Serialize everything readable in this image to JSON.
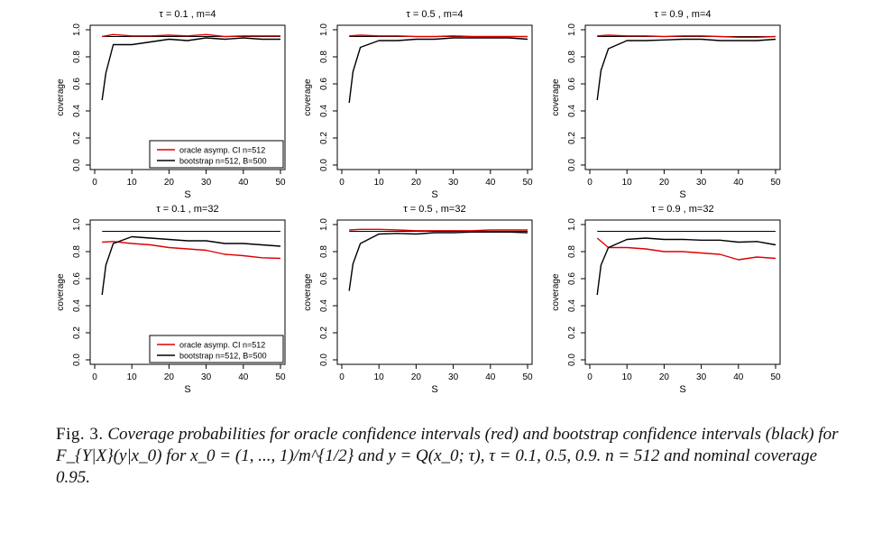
{
  "caption": {
    "label": "Fig. 3.",
    "text": "Coverage probabilities for oracle confidence intervals (red) and bootstrap confidence intervals (black) for F_{Y|X}(y|x_0) for x_0 = (1, ..., 1)/m^{1/2} and y = Q(x_0; τ), τ = 0.1, 0.5, 0.9. n = 512 and nominal coverage 0.95."
  },
  "colors": {
    "oracle": "#e00000",
    "bootstrap": "#000000",
    "nominal": "#000000"
  },
  "chart_data": [
    {
      "type": "line",
      "title": "τ = 0.1 , m=4",
      "xlabel": "S",
      "ylabel": "coverage",
      "xlim": [
        0,
        50
      ],
      "ylim": [
        0,
        1
      ],
      "xticks": [
        "0",
        "10",
        "20",
        "30",
        "40",
        "50"
      ],
      "yticks": [
        "0.0",
        "0.2",
        "0.4",
        "0.6",
        "0.8",
        "1.0"
      ],
      "nominal": 0.95,
      "legend": {
        "position": "bottom-right",
        "entries": [
          "oracle asymp. CI n=512",
          "bootstrap n=512, B=500"
        ]
      },
      "series": [
        {
          "role": "oracle",
          "x": [
            2,
            5,
            10,
            15,
            20,
            25,
            30,
            35,
            40,
            45,
            50
          ],
          "y": [
            0.95,
            0.965,
            0.955,
            0.955,
            0.96,
            0.955,
            0.965,
            0.95,
            0.955,
            0.955,
            0.955
          ]
        },
        {
          "role": "bootstrap",
          "x": [
            2,
            3,
            5,
            10,
            15,
            20,
            25,
            30,
            35,
            40,
            45,
            50
          ],
          "y": [
            0.48,
            0.68,
            0.89,
            0.89,
            0.91,
            0.93,
            0.92,
            0.94,
            0.93,
            0.94,
            0.93,
            0.93
          ]
        }
      ]
    },
    {
      "type": "line",
      "title": "τ = 0.5 , m=4",
      "xlabel": "S",
      "ylabel": "coverage",
      "xlim": [
        0,
        50
      ],
      "ylim": [
        0,
        1
      ],
      "xticks": [
        "0",
        "10",
        "20",
        "30",
        "40",
        "50"
      ],
      "yticks": [
        "0.0",
        "0.2",
        "0.4",
        "0.6",
        "0.8",
        "1.0"
      ],
      "nominal": 0.95,
      "legend": null,
      "series": [
        {
          "role": "oracle",
          "x": [
            2,
            5,
            10,
            15,
            20,
            25,
            30,
            35,
            40,
            45,
            50
          ],
          "y": [
            0.955,
            0.96,
            0.955,
            0.955,
            0.95,
            0.95,
            0.955,
            0.95,
            0.95,
            0.95,
            0.95
          ]
        },
        {
          "role": "bootstrap",
          "x": [
            2,
            3,
            5,
            10,
            15,
            20,
            25,
            30,
            35,
            40,
            45,
            50
          ],
          "y": [
            0.46,
            0.69,
            0.87,
            0.92,
            0.92,
            0.93,
            0.93,
            0.94,
            0.94,
            0.94,
            0.94,
            0.93
          ]
        }
      ]
    },
    {
      "type": "line",
      "title": "τ = 0.9 , m=4",
      "xlabel": "S",
      "ylabel": "coverage",
      "xlim": [
        0,
        50
      ],
      "ylim": [
        0,
        1
      ],
      "xticks": [
        "0",
        "10",
        "20",
        "30",
        "40",
        "50"
      ],
      "yticks": [
        "0.0",
        "0.2",
        "0.4",
        "0.6",
        "0.8",
        "1.0"
      ],
      "nominal": 0.95,
      "legend": null,
      "series": [
        {
          "role": "oracle",
          "x": [
            2,
            5,
            10,
            15,
            20,
            25,
            30,
            35,
            40,
            45,
            50
          ],
          "y": [
            0.955,
            0.96,
            0.955,
            0.955,
            0.95,
            0.955,
            0.955,
            0.95,
            0.945,
            0.945,
            0.95
          ]
        },
        {
          "role": "bootstrap",
          "x": [
            2,
            3,
            5,
            10,
            15,
            20,
            25,
            30,
            35,
            40,
            45,
            50
          ],
          "y": [
            0.48,
            0.7,
            0.86,
            0.92,
            0.92,
            0.925,
            0.93,
            0.93,
            0.92,
            0.92,
            0.92,
            0.93
          ]
        }
      ]
    },
    {
      "type": "line",
      "title": "τ = 0.1 , m=32",
      "xlabel": "S",
      "ylabel": "coverage",
      "xlim": [
        0,
        50
      ],
      "ylim": [
        0,
        1
      ],
      "xticks": [
        "0",
        "10",
        "20",
        "30",
        "40",
        "50"
      ],
      "yticks": [
        "0.0",
        "0.2",
        "0.4",
        "0.6",
        "0.8",
        "1.0"
      ],
      "nominal": 0.95,
      "legend": {
        "position": "bottom-right",
        "entries": [
          "oracle asymp. CI n=512",
          "bootstrap n=512, B=500"
        ]
      },
      "series": [
        {
          "role": "oracle",
          "x": [
            2,
            5,
            10,
            15,
            20,
            25,
            30,
            35,
            40,
            45,
            50
          ],
          "y": [
            0.87,
            0.875,
            0.86,
            0.85,
            0.83,
            0.82,
            0.81,
            0.78,
            0.77,
            0.755,
            0.75
          ]
        },
        {
          "role": "bootstrap",
          "x": [
            2,
            3,
            5,
            10,
            15,
            20,
            25,
            30,
            35,
            40,
            45,
            50
          ],
          "y": [
            0.48,
            0.7,
            0.86,
            0.91,
            0.9,
            0.89,
            0.88,
            0.88,
            0.86,
            0.86,
            0.85,
            0.84
          ]
        }
      ]
    },
    {
      "type": "line",
      "title": "τ = 0.5 , m=32",
      "xlabel": "S",
      "ylabel": "coverage",
      "xlim": [
        0,
        50
      ],
      "ylim": [
        0,
        1
      ],
      "xticks": [
        "0",
        "10",
        "20",
        "30",
        "40",
        "50"
      ],
      "yticks": [
        "0.0",
        "0.2",
        "0.4",
        "0.6",
        "0.8",
        "1.0"
      ],
      "nominal": 0.95,
      "legend": null,
      "series": [
        {
          "role": "oracle",
          "x": [
            2,
            5,
            10,
            15,
            20,
            25,
            30,
            35,
            40,
            45,
            50
          ],
          "y": [
            0.96,
            0.965,
            0.965,
            0.96,
            0.955,
            0.955,
            0.955,
            0.955,
            0.96,
            0.96,
            0.96
          ]
        },
        {
          "role": "bootstrap",
          "x": [
            2,
            3,
            5,
            10,
            15,
            20,
            25,
            30,
            35,
            40,
            45,
            50
          ],
          "y": [
            0.51,
            0.71,
            0.86,
            0.93,
            0.935,
            0.93,
            0.94,
            0.94,
            0.945,
            0.945,
            0.945,
            0.94
          ]
        }
      ]
    },
    {
      "type": "line",
      "title": "τ = 0.9 , m=32",
      "xlabel": "S",
      "ylabel": "coverage",
      "xlim": [
        0,
        50
      ],
      "ylim": [
        0,
        1
      ],
      "xticks": [
        "0",
        "10",
        "20",
        "30",
        "40",
        "50"
      ],
      "yticks": [
        "0.0",
        "0.2",
        "0.4",
        "0.6",
        "0.8",
        "1.0"
      ],
      "nominal": 0.95,
      "legend": null,
      "series": [
        {
          "role": "oracle",
          "x": [
            2,
            5,
            10,
            15,
            20,
            25,
            30,
            35,
            40,
            45,
            50
          ],
          "y": [
            0.9,
            0.83,
            0.83,
            0.82,
            0.8,
            0.8,
            0.79,
            0.78,
            0.74,
            0.76,
            0.75
          ]
        },
        {
          "role": "bootstrap",
          "x": [
            2,
            3,
            5,
            10,
            15,
            20,
            25,
            30,
            35,
            40,
            45,
            50
          ],
          "y": [
            0.48,
            0.7,
            0.83,
            0.89,
            0.9,
            0.89,
            0.89,
            0.885,
            0.885,
            0.87,
            0.875,
            0.85
          ]
        }
      ]
    }
  ]
}
